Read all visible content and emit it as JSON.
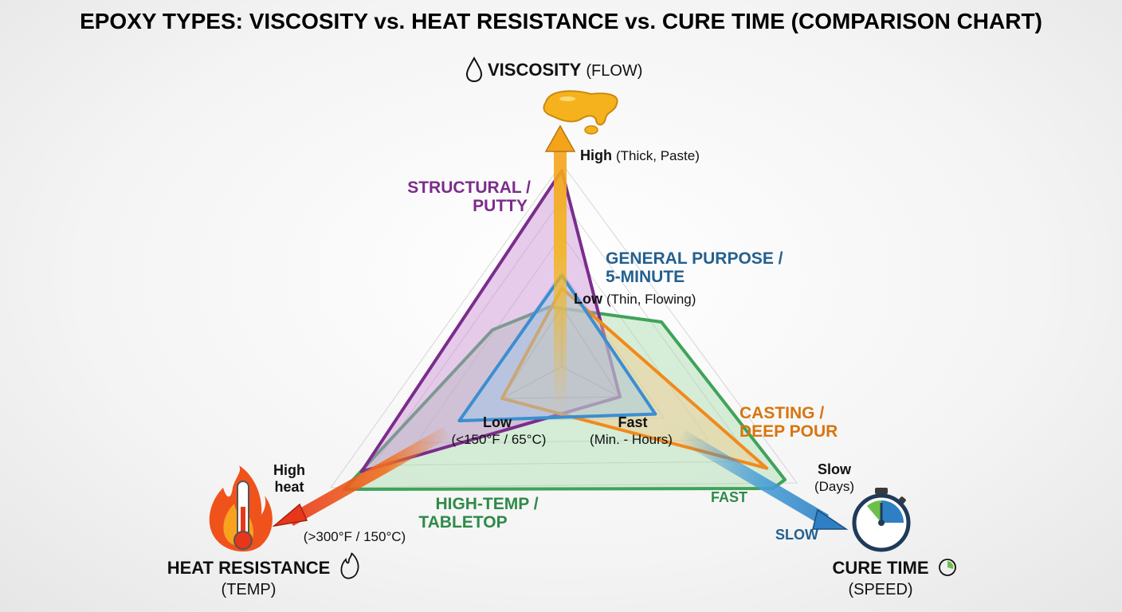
{
  "chart_data": {
    "type": "radar",
    "title": "EPOXY TYPES: VISCOSITY vs. HEAT RESISTANCE vs. CURE TIME (COMPARISON CHART)",
    "axes": [
      {
        "key": "viscosity",
        "name": "VISCOSITY",
        "sub": "(FLOW)",
        "icon": "droplet-icon",
        "high_label": "High",
        "high_detail": "(Thick, Paste)",
        "low_label": "Low",
        "low_detail": "(Thin, Flowing)"
      },
      {
        "key": "heat",
        "name": "HEAT RESISTANCE",
        "sub": "(TEMP)",
        "icon": "flame-icon",
        "high_label_line1": "High",
        "high_label_line2": "heat",
        "high_detail": "(>300°F / 150°C)",
        "low_label": "Low",
        "low_detail": "(<150°F / 65°C)"
      },
      {
        "key": "cure",
        "name": "CURE TIME",
        "sub": "(SPEED)",
        "icon": "stopwatch-icon",
        "high_label": "Slow",
        "high_detail": "(Days)",
        "low_label": "Fast",
        "low_detail": "(Min. - Hours)"
      }
    ],
    "scale": [
      0,
      1
    ],
    "series": [
      {
        "name_line1": "STRUCTURAL /",
        "name_line2": "PUTTY",
        "color": "#7b2d8b",
        "fill": "#c98fd4",
        "values": {
          "viscosity": 0.95,
          "heat": 0.82,
          "cure": 0.0
        },
        "shape": "triangle"
      },
      {
        "name_line1": "GENERAL PURPOSE /",
        "name_line2": "5-MINUTE",
        "color": "#3b8ed0",
        "fill": "#9cc8ea",
        "values": {
          "viscosity": 0.22,
          "heat": 0.25,
          "cure": 0.2
        },
        "shape": "triangle"
      },
      {
        "name_line1": "CASTING /",
        "name_line2": "DEEP POUR",
        "color": "#f18a1b",
        "fill": "#f4c98a",
        "values": {
          "viscosity": 0.13,
          "heat": 0.0,
          "cure": 0.83
        },
        "shape": "triangle"
      },
      {
        "name_line1": "HIGH-TEMP /",
        "name_line2": "TABLETOP",
        "color": "#3fa35a",
        "fill": "#a9dcae",
        "values": {
          "viscosity": 0.12,
          "heat": 0.82,
          "cure": 0.78
        },
        "shape": "hexagon",
        "fast_tag": "FAST",
        "slow_tag": "SLOW"
      }
    ],
    "colors": {
      "viscosity_arrow": "#f2b51f",
      "heat_arrow": "#e8361a",
      "cure_arrow": "#2f7fc4",
      "grid": "#bdbdbd"
    }
  }
}
